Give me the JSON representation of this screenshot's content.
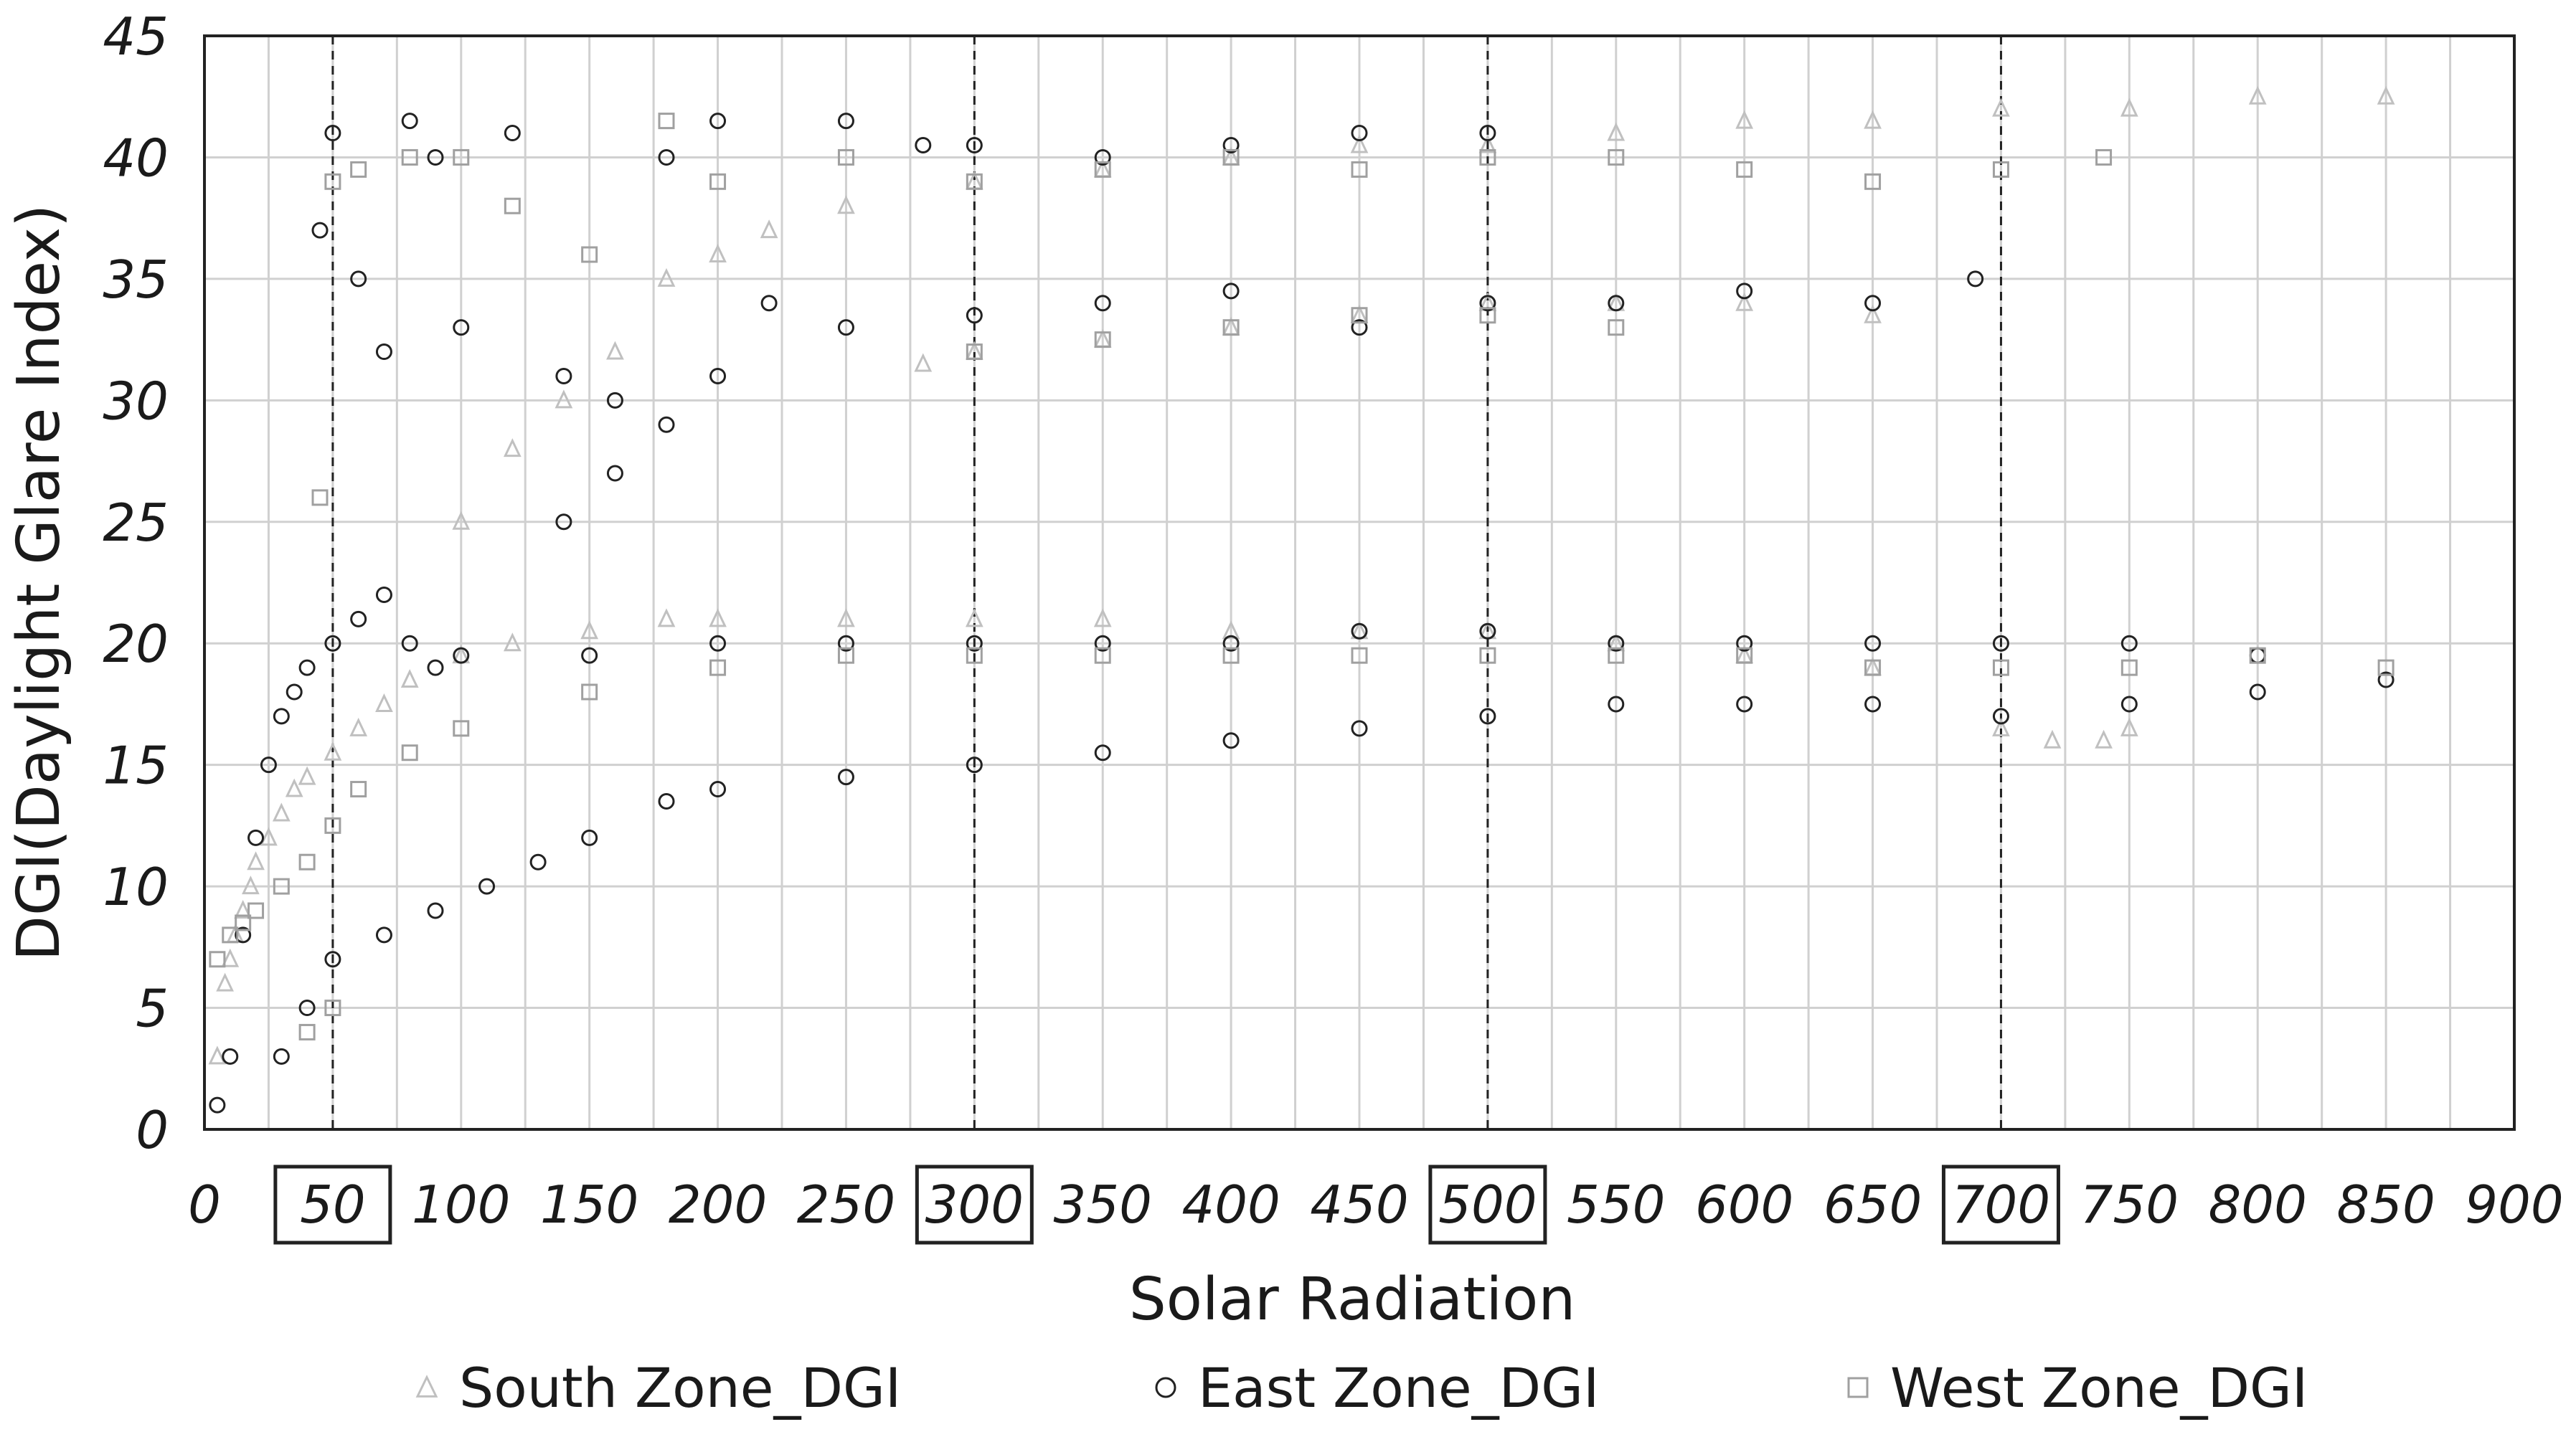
{
  "chart_data": {
    "type": "scatter",
    "title": "",
    "xlabel": "Solar Radiation",
    "ylabel": "DGI(Daylight Glare Index)",
    "xlim": [
      0,
      900
    ],
    "ylim": [
      0,
      45
    ],
    "x_ticks": [
      0,
      50,
      100,
      150,
      200,
      250,
      300,
      350,
      400,
      450,
      500,
      550,
      600,
      650,
      700,
      750,
      800,
      850,
      900
    ],
    "y_ticks": [
      0,
      5,
      10,
      15,
      20,
      25,
      30,
      35,
      40,
      45
    ],
    "x_tick_labels": [
      "0",
      "50",
      "100",
      "150",
      "200",
      "250",
      "300",
      "350",
      "400",
      "450",
      "500",
      "550",
      "600",
      "650",
      "700",
      "750",
      "800",
      "850",
      "900"
    ],
    "y_tick_labels": [
      "0",
      "5",
      "10",
      "15",
      "20",
      "25",
      "30",
      "35",
      "40",
      "45"
    ],
    "grid": true,
    "minor_grid_x": true,
    "reference_lines_x": [
      50,
      300,
      500,
      700
    ],
    "boxed_x_ticks": [
      50,
      300,
      500,
      700
    ],
    "legend_position": "bottom",
    "series": [
      {
        "name": "South Zone_DGI",
        "marker": "triangle",
        "color": "#c0c0c0",
        "points": [
          [
            5,
            3
          ],
          [
            8,
            6
          ],
          [
            10,
            7
          ],
          [
            12,
            8
          ],
          [
            15,
            9
          ],
          [
            18,
            10
          ],
          [
            20,
            11
          ],
          [
            25,
            12
          ],
          [
            30,
            13
          ],
          [
            35,
            14
          ],
          [
            40,
            14.5
          ],
          [
            50,
            15.5
          ],
          [
            60,
            16.5
          ],
          [
            70,
            17.5
          ],
          [
            80,
            18.5
          ],
          [
            100,
            19.5
          ],
          [
            120,
            20
          ],
          [
            150,
            20.5
          ],
          [
            180,
            21
          ],
          [
            200,
            21
          ],
          [
            250,
            21
          ],
          [
            300,
            21
          ],
          [
            350,
            21
          ],
          [
            400,
            20.5
          ],
          [
            450,
            20.5
          ],
          [
            500,
            20.5
          ],
          [
            550,
            20
          ],
          [
            600,
            19.5
          ],
          [
            650,
            19
          ],
          [
            700,
            16.5
          ],
          [
            720,
            16
          ],
          [
            740,
            16
          ],
          [
            750,
            16.5
          ],
          [
            100,
            25
          ],
          [
            120,
            28
          ],
          [
            140,
            30
          ],
          [
            160,
            32
          ],
          [
            180,
            35
          ],
          [
            200,
            36
          ],
          [
            220,
            37
          ],
          [
            250,
            38
          ],
          [
            300,
            39
          ],
          [
            350,
            39.5
          ],
          [
            400,
            40
          ],
          [
            450,
            40.5
          ],
          [
            500,
            40.5
          ],
          [
            550,
            41
          ],
          [
            600,
            41.5
          ],
          [
            650,
            41.5
          ],
          [
            700,
            42
          ],
          [
            750,
            42
          ],
          [
            800,
            42.5
          ],
          [
            850,
            42.5
          ],
          [
            280,
            31.5
          ],
          [
            300,
            32
          ],
          [
            350,
            32.5
          ],
          [
            400,
            33
          ],
          [
            450,
            33.5
          ],
          [
            500,
            34
          ],
          [
            550,
            34
          ],
          [
            600,
            34
          ],
          [
            650,
            33.5
          ]
        ]
      },
      {
        "name": "East Zone_DGI",
        "marker": "circle",
        "color": "#222222",
        "points": [
          [
            5,
            1
          ],
          [
            10,
            3
          ],
          [
            15,
            8
          ],
          [
            20,
            12
          ],
          [
            25,
            15
          ],
          [
            30,
            17
          ],
          [
            35,
            18
          ],
          [
            40,
            19
          ],
          [
            50,
            20
          ],
          [
            60,
            21
          ],
          [
            70,
            22
          ],
          [
            80,
            20
          ],
          [
            90,
            19
          ],
          [
            100,
            19.5
          ],
          [
            150,
            19.5
          ],
          [
            200,
            20
          ],
          [
            250,
            20
          ],
          [
            300,
            20
          ],
          [
            350,
            20
          ],
          [
            400,
            20
          ],
          [
            450,
            20.5
          ],
          [
            500,
            20.5
          ],
          [
            550,
            20
          ],
          [
            600,
            20
          ],
          [
            650,
            20
          ],
          [
            700,
            20
          ],
          [
            750,
            20
          ],
          [
            800,
            19.5
          ],
          [
            850,
            18.5
          ],
          [
            30,
            3
          ],
          [
            40,
            5
          ],
          [
            50,
            7
          ],
          [
            70,
            8
          ],
          [
            90,
            9
          ],
          [
            110,
            10
          ],
          [
            130,
            11
          ],
          [
            150,
            12
          ],
          [
            180,
            13.5
          ],
          [
            200,
            14
          ],
          [
            250,
            14.5
          ],
          [
            300,
            15
          ],
          [
            350,
            15.5
          ],
          [
            400,
            16
          ],
          [
            450,
            16.5
          ],
          [
            500,
            17
          ],
          [
            550,
            17.5
          ],
          [
            600,
            17.5
          ],
          [
            650,
            17.5
          ],
          [
            700,
            17
          ],
          [
            750,
            17.5
          ],
          [
            800,
            18
          ],
          [
            45,
            37
          ],
          [
            50,
            41
          ],
          [
            60,
            35
          ],
          [
            70,
            32
          ],
          [
            80,
            41.5
          ],
          [
            90,
            40
          ],
          [
            100,
            33
          ],
          [
            120,
            41
          ],
          [
            140,
            31
          ],
          [
            160,
            30
          ],
          [
            180,
            40
          ],
          [
            200,
            41.5
          ],
          [
            220,
            34
          ],
          [
            250,
            41.5
          ],
          [
            280,
            40.5
          ],
          [
            300,
            40.5
          ],
          [
            350,
            40
          ],
          [
            400,
            40.5
          ],
          [
            450,
            41
          ],
          [
            500,
            41
          ],
          [
            250,
            33
          ],
          [
            300,
            33.5
          ],
          [
            350,
            34
          ],
          [
            400,
            34.5
          ],
          [
            450,
            33
          ],
          [
            500,
            34
          ],
          [
            550,
            34
          ],
          [
            600,
            34.5
          ],
          [
            650,
            34
          ],
          [
            690,
            35
          ],
          [
            140,
            25
          ],
          [
            160,
            27
          ],
          [
            180,
            29
          ],
          [
            200,
            31
          ]
        ]
      },
      {
        "name": "West Zone_DGI",
        "marker": "square",
        "color": "#a0a0a0",
        "points": [
          [
            5,
            7
          ],
          [
            10,
            8
          ],
          [
            15,
            8.5
          ],
          [
            20,
            9
          ],
          [
            30,
            10
          ],
          [
            40,
            11
          ],
          [
            50,
            12.5
          ],
          [
            60,
            14
          ],
          [
            80,
            15.5
          ],
          [
            100,
            16.5
          ],
          [
            150,
            18
          ],
          [
            200,
            19
          ],
          [
            250,
            19.5
          ],
          [
            300,
            19.5
          ],
          [
            350,
            19.5
          ],
          [
            400,
            19.5
          ],
          [
            450,
            19.5
          ],
          [
            500,
            19.5
          ],
          [
            550,
            19.5
          ],
          [
            600,
            19.5
          ],
          [
            650,
            19
          ],
          [
            700,
            19
          ],
          [
            750,
            19
          ],
          [
            800,
            19.5
          ],
          [
            850,
            19
          ],
          [
            40,
            4
          ],
          [
            50,
            5
          ],
          [
            45,
            26
          ],
          [
            50,
            39
          ],
          [
            60,
            39.5
          ],
          [
            80,
            40
          ],
          [
            100,
            40
          ],
          [
            120,
            38
          ],
          [
            150,
            36
          ],
          [
            180,
            41.5
          ],
          [
            200,
            39
          ],
          [
            250,
            40
          ],
          [
            300,
            39
          ],
          [
            350,
            39.5
          ],
          [
            400,
            40
          ],
          [
            450,
            39.5
          ],
          [
            500,
            40
          ],
          [
            550,
            40
          ],
          [
            600,
            39.5
          ],
          [
            650,
            39
          ],
          [
            700,
            39.5
          ],
          [
            740,
            40
          ],
          [
            300,
            32
          ],
          [
            350,
            32.5
          ],
          [
            400,
            33
          ],
          [
            450,
            33.5
          ],
          [
            500,
            33.5
          ],
          [
            550,
            33
          ]
        ]
      }
    ]
  },
  "legend": {
    "items": [
      {
        "label": "South Zone_DGI",
        "marker": "triangle"
      },
      {
        "label": "East Zone_DGI",
        "marker": "circle"
      },
      {
        "label": "West Zone_DGI",
        "marker": "square"
      }
    ]
  }
}
